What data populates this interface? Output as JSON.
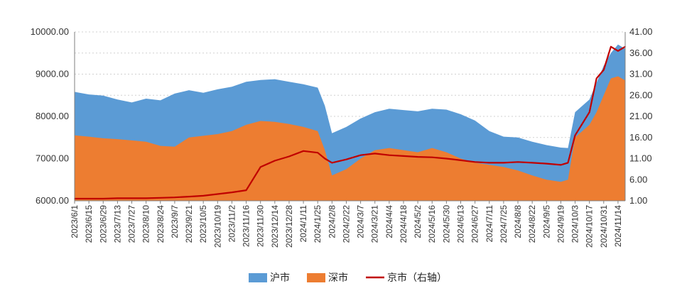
{
  "chart_data": {
    "type": "area",
    "title": "",
    "xlabel": "",
    "ylabel_left": "",
    "ylabel_right": "",
    "ylim_left": [
      6000,
      10000
    ],
    "ylim_right": [
      1,
      41
    ],
    "yticks_left": [
      "6000.00",
      "7000.00",
      "8000.00",
      "9000.00",
      "10000.00"
    ],
    "yticks_right": [
      "1.00",
      "6.00",
      "11.00",
      "16.00",
      "21.00",
      "26.00",
      "31.00",
      "36.00",
      "41.00"
    ],
    "x_tick_labels": [
      "2023/6/1",
      "2023/6/15",
      "2023/6/29",
      "2023/7/13",
      "2023/7/27",
      "2023/8/10",
      "2023/8/24",
      "2023/9/7",
      "2023/9/21",
      "2023/10/5",
      "2023/10/19",
      "2023/11/2",
      "2023/11/16",
      "2023/11/30",
      "2023/12/14",
      "2023/12/28",
      "2024/1/11",
      "2024/1/25",
      "2024/2/8",
      "2024/2/22",
      "2024/3/7",
      "2024/3/21",
      "2024/4/4",
      "2024/4/18",
      "2024/5/2",
      "2024/5/16",
      "2024/5/30",
      "2024/6/13",
      "2024/6/27",
      "2024/7/11",
      "2024/7/25",
      "2024/8/8",
      "2024/8/22",
      "2024/9/5",
      "2024/9/19",
      "2024/10/3",
      "2024/10/17",
      "2024/10/31",
      "2024/11/14"
    ],
    "x": [
      "2023/6/1",
      "2023/6/15",
      "2023/6/29",
      "2023/7/13",
      "2023/7/27",
      "2023/8/10",
      "2023/8/24",
      "2023/9/7",
      "2023/9/21",
      "2023/10/5",
      "2023/10/19",
      "2023/11/2",
      "2023/11/16",
      "2023/11/30",
      "2023/12/14",
      "2023/12/28",
      "2024/1/11",
      "2024/1/25",
      "2024/2/1",
      "2024/2/8",
      "2024/2/22",
      "2024/3/7",
      "2024/3/21",
      "2024/4/4",
      "2024/4/18",
      "2024/5/2",
      "2024/5/16",
      "2024/5/30",
      "2024/6/13",
      "2024/6/27",
      "2024/7/11",
      "2024/7/25",
      "2024/8/8",
      "2024/8/22",
      "2024/9/5",
      "2024/9/19",
      "2024/9/26",
      "2024/10/3",
      "2024/10/17",
      "2024/10/24",
      "2024/10/31",
      "2024/11/7",
      "2024/11/14",
      "2024/11/21"
    ],
    "series": [
      {
        "name": "沪市",
        "axis": "left",
        "color": "#5b9bd5",
        "values": [
          8580,
          8520,
          8490,
          8400,
          8330,
          8420,
          8380,
          8540,
          8620,
          8560,
          8640,
          8700,
          8820,
          8860,
          8880,
          8820,
          8760,
          8680,
          8250,
          7600,
          7750,
          7950,
          8100,
          8180,
          8150,
          8120,
          8180,
          8160,
          8050,
          7900,
          7650,
          7520,
          7500,
          7400,
          7320,
          7260,
          7250,
          8100,
          8400,
          8800,
          9200,
          9500,
          9700,
          9600
        ]
      },
      {
        "name": "深市",
        "axis": "left",
        "color": "#ed7d31",
        "values": [
          7550,
          7520,
          7480,
          7460,
          7430,
          7400,
          7300,
          7280,
          7500,
          7540,
          7580,
          7650,
          7800,
          7890,
          7870,
          7820,
          7750,
          7650,
          7200,
          6600,
          6750,
          7000,
          7200,
          7250,
          7200,
          7150,
          7250,
          7150,
          7000,
          6900,
          6850,
          6800,
          6720,
          6600,
          6500,
          6450,
          6500,
          7500,
          7800,
          8100,
          8500,
          8900,
          8950,
          8850
        ]
      },
      {
        "name": "京市（右轴）",
        "axis": "right",
        "color": "#c00000",
        "values": [
          1.5,
          1.5,
          1.5,
          1.6,
          1.6,
          1.6,
          1.7,
          1.8,
          2.0,
          2.2,
          2.6,
          3.0,
          3.5,
          9.0,
          10.5,
          11.5,
          12.8,
          12.4,
          11.0,
          10.0,
          10.8,
          11.8,
          12.2,
          11.8,
          11.6,
          11.4,
          11.3,
          11.0,
          10.6,
          10.2,
          10.0,
          10.0,
          10.2,
          10.0,
          9.8,
          9.5,
          10.0,
          16.5,
          22.0,
          30.0,
          32.0,
          37.5,
          36.5,
          37.5
        ]
      }
    ],
    "legend": {
      "position": "bottom",
      "entries": [
        {
          "label": "沪市",
          "color": "#5b9bd5",
          "kind": "area"
        },
        {
          "label": "深市",
          "color": "#ed7d31",
          "kind": "area"
        },
        {
          "label": "京市（右轴）",
          "color": "#c00000",
          "kind": "line"
        }
      ]
    },
    "grid": true
  }
}
